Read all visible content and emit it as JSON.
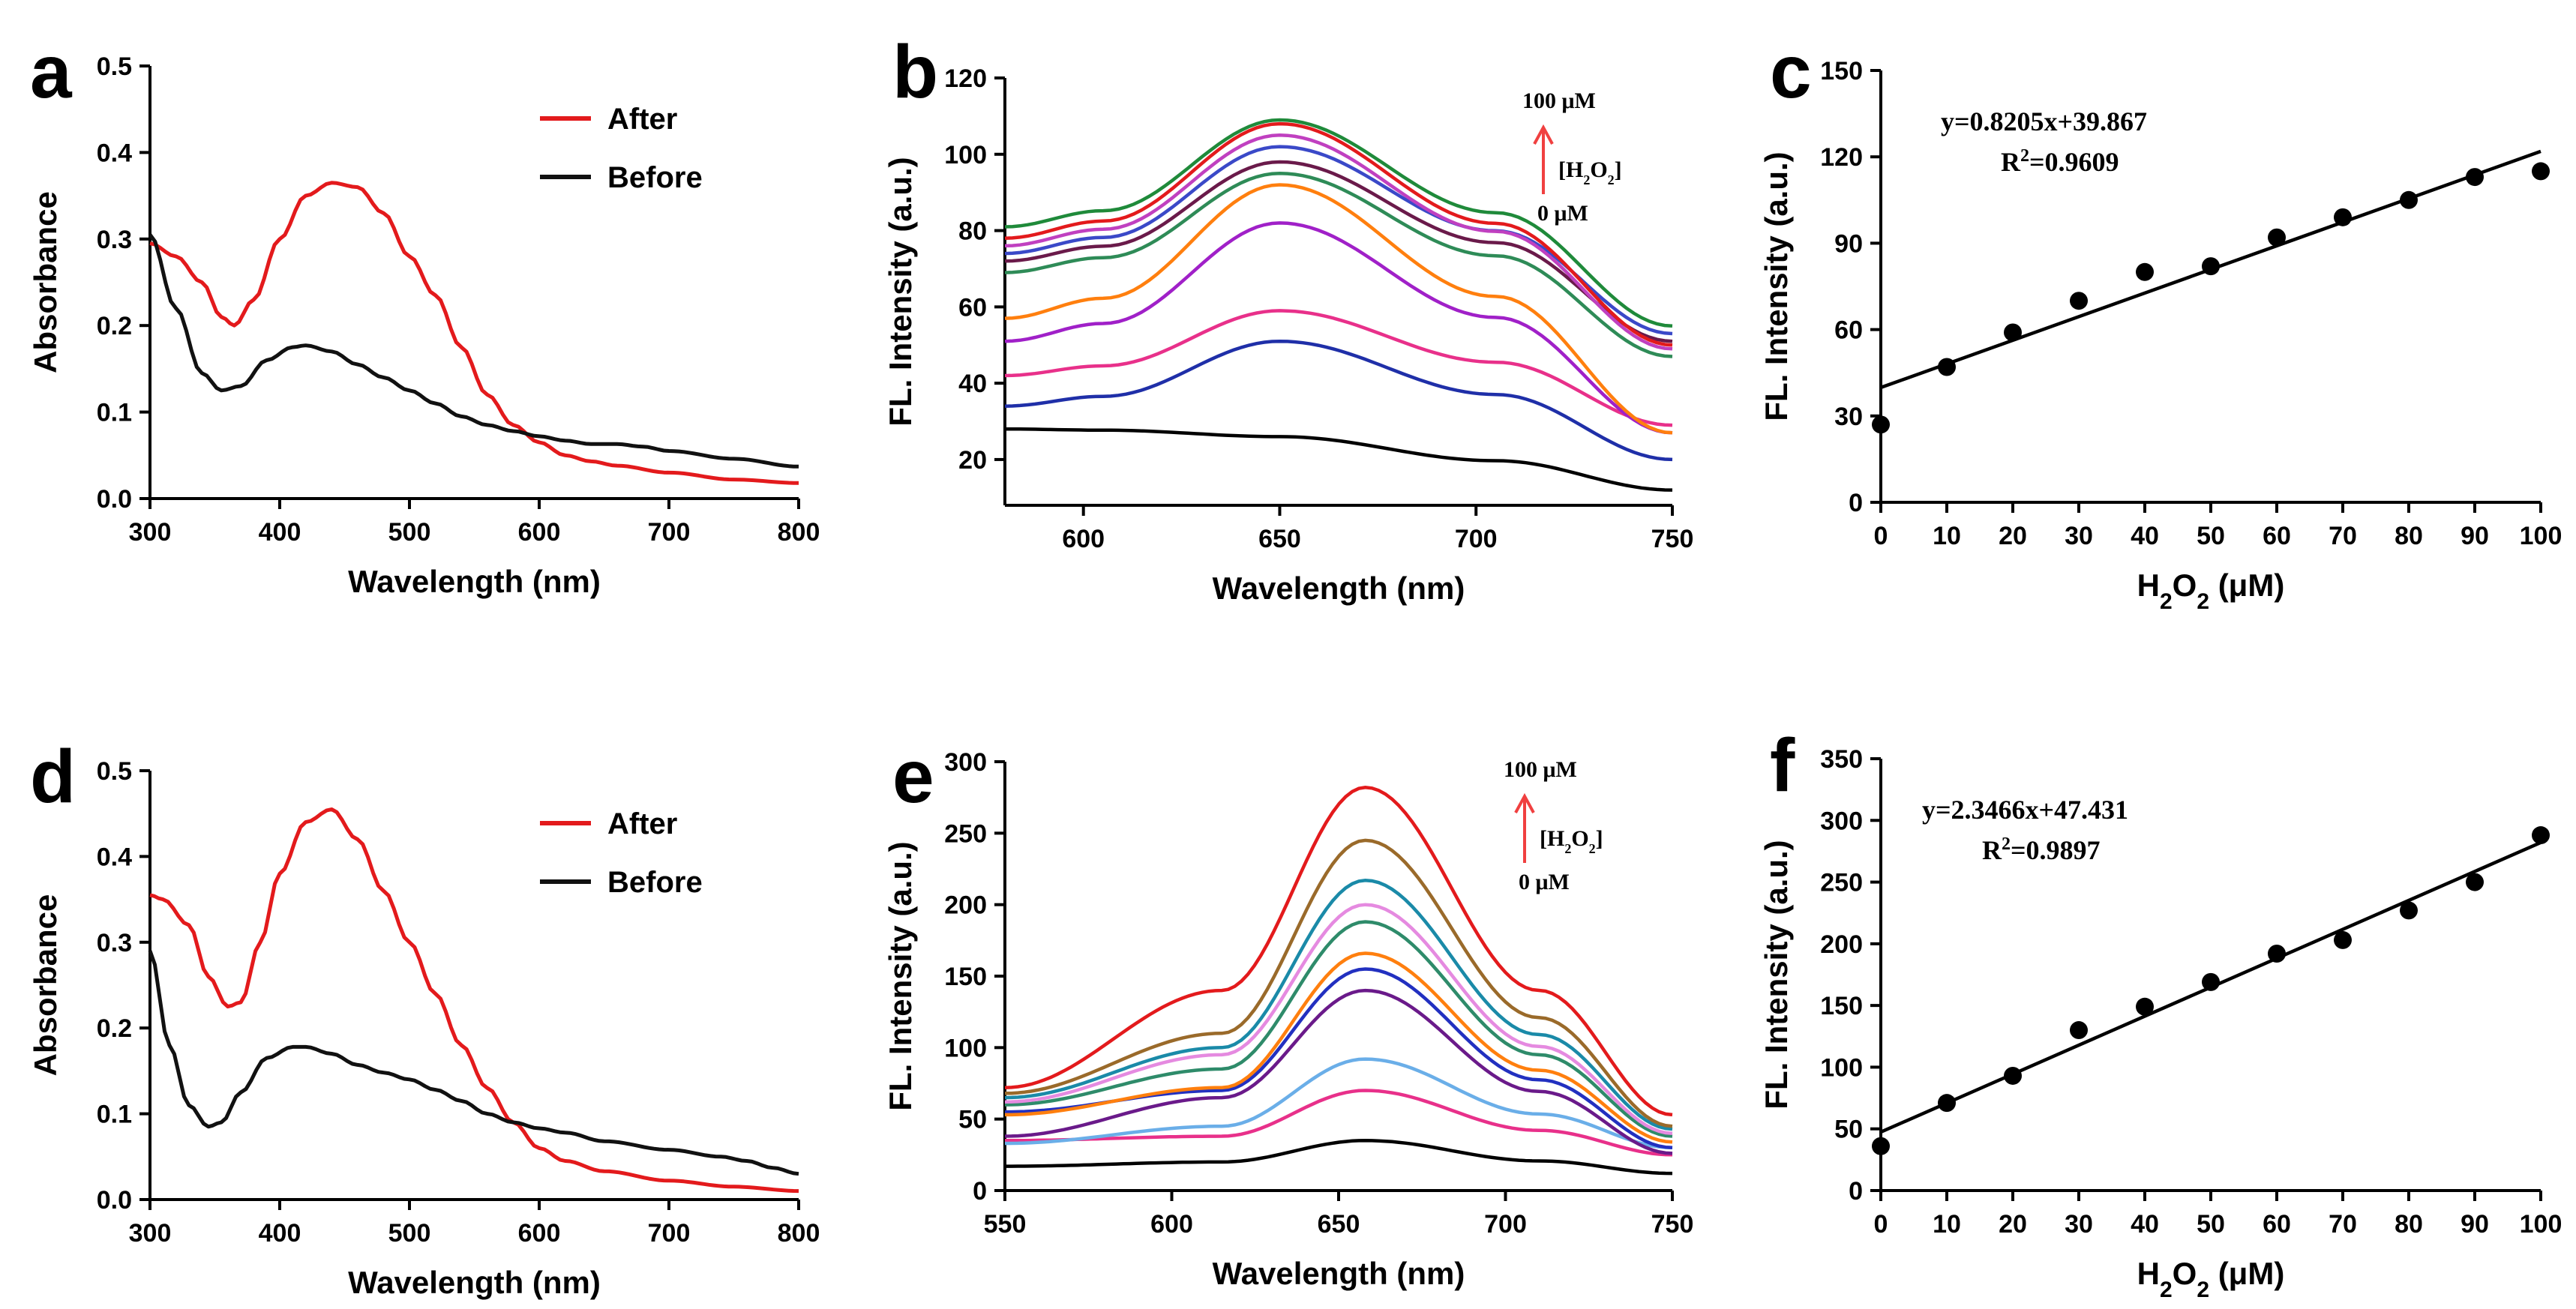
{
  "chart_data": [
    {
      "panel": "a",
      "type": "line",
      "xlabel": "Wavelength (nm)",
      "ylabel": "Absorbance",
      "xlim": [
        300,
        800
      ],
      "ylim": [
        0,
        0.5
      ],
      "xticks": [
        300,
        400,
        500,
        600,
        700,
        800
      ],
      "yticks": [
        0,
        0.1,
        0.2,
        0.3,
        0.4,
        0.5
      ],
      "ytick_labels": [
        "0.0",
        "0.1",
        "0.2",
        "0.3",
        "0.4",
        "0.5"
      ],
      "legend": {
        "placement": "top-right",
        "items": [
          "After",
          "Before"
        ]
      },
      "series": [
        {
          "name": "After",
          "color": "#e31a1c",
          "x": [
            300,
            320,
            340,
            355,
            365,
            380,
            400,
            420,
            440,
            460,
            480,
            500,
            520,
            540,
            560,
            580,
            600,
            620,
            640,
            660,
            700,
            750,
            800
          ],
          "y": [
            0.295,
            0.28,
            0.25,
            0.21,
            0.2,
            0.23,
            0.3,
            0.35,
            0.365,
            0.36,
            0.33,
            0.28,
            0.235,
            0.175,
            0.12,
            0.085,
            0.065,
            0.05,
            0.043,
            0.038,
            0.03,
            0.022,
            0.018
          ]
        },
        {
          "name": "Before",
          "color": "#111111",
          "x": [
            300,
            320,
            340,
            355,
            370,
            390,
            410,
            420,
            440,
            460,
            480,
            500,
            520,
            540,
            560,
            580,
            600,
            620,
            640,
            660,
            680,
            700,
            750,
            800
          ],
          "y": [
            0.305,
            0.22,
            0.145,
            0.125,
            0.13,
            0.16,
            0.175,
            0.177,
            0.17,
            0.155,
            0.14,
            0.125,
            0.11,
            0.095,
            0.085,
            0.078,
            0.072,
            0.067,
            0.063,
            0.063,
            0.06,
            0.055,
            0.046,
            0.037
          ]
        }
      ]
    },
    {
      "panel": "b",
      "type": "line",
      "xlabel": "Wavelength (nm)",
      "ylabel": "FL. Intensity (a.u.)",
      "xlim": [
        580,
        750
      ],
      "ylim": [
        8,
        120
      ],
      "xticks": [
        600,
        650,
        700,
        750
      ],
      "yticks": [
        20,
        40,
        60,
        80,
        100,
        120
      ],
      "annotation": {
        "top": "100 μM",
        "middle": "[H",
        "sub": "2",
        "middle2": "O",
        "end": "]",
        "bottom": "0 μM"
      },
      "series_shape": {
        "x_start": 580,
        "x_peak": 650,
        "x_end": 750
      },
      "series": [
        {
          "color": "#000000",
          "start": 28,
          "peak": 26,
          "end": 12
        },
        {
          "color": "#1f2fa8",
          "start": 34,
          "peak": 51,
          "end": 20
        },
        {
          "color": "#e8308a",
          "start": 42,
          "peak": 59,
          "end": 29
        },
        {
          "color": "#a020c8",
          "start": 51,
          "peak": 82,
          "end": 27
        },
        {
          "color": "#ff7f0e",
          "start": 57,
          "peak": 92,
          "end": 27
        },
        {
          "color": "#2e8b57",
          "start": 69,
          "peak": 95,
          "end": 47
        },
        {
          "color": "#6a1a4a",
          "start": 72,
          "peak": 98,
          "end": 51
        },
        {
          "color": "#3a49c8",
          "start": 74,
          "peak": 102,
          "end": 53
        },
        {
          "color": "#c040c0",
          "start": 76,
          "peak": 105,
          "end": 49
        },
        {
          "color": "#e31a1c",
          "start": 78,
          "peak": 108,
          "end": 50
        },
        {
          "color": "#1f8a3a",
          "start": 81,
          "peak": 109,
          "end": 55
        }
      ]
    },
    {
      "panel": "c",
      "type": "scatter",
      "xlabel_parts": [
        "H",
        "2",
        "O",
        "2",
        " (μM)"
      ],
      "ylabel": "FL. Intensity (a.u.)",
      "xlim": [
        0,
        100
      ],
      "ylim": [
        0,
        150
      ],
      "xticks": [
        0,
        10,
        20,
        30,
        40,
        50,
        60,
        70,
        80,
        90,
        100
      ],
      "yticks": [
        0,
        30,
        60,
        90,
        120,
        150
      ],
      "equation": "y=0.8205x+39.867",
      "r2_prefix": "R",
      "r2_sup": "2",
      "r2_value": "=0.9609",
      "fit": {
        "slope": 0.8205,
        "intercept": 39.867
      },
      "x": [
        0,
        10,
        20,
        30,
        40,
        50,
        60,
        70,
        80,
        90,
        100
      ],
      "y": [
        27,
        47,
        59,
        70,
        80,
        82,
        92,
        99,
        105,
        113,
        115
      ]
    },
    {
      "panel": "d",
      "type": "line",
      "xlabel": "Wavelength (nm)",
      "ylabel": "Absorbance",
      "xlim": [
        300,
        800
      ],
      "ylim": [
        0,
        0.5
      ],
      "xticks": [
        300,
        400,
        500,
        600,
        700,
        800
      ],
      "yticks": [
        0,
        0.1,
        0.2,
        0.3,
        0.4,
        0.5
      ],
      "ytick_labels": [
        "0.0",
        "0.1",
        "0.2",
        "0.3",
        "0.4",
        "0.5"
      ],
      "legend": {
        "placement": "top-right",
        "items": [
          "After",
          "Before"
        ]
      },
      "series": [
        {
          "name": "After",
          "color": "#e31a1c",
          "x": [
            300,
            310,
            330,
            345,
            360,
            370,
            385,
            400,
            420,
            440,
            460,
            480,
            500,
            520,
            540,
            560,
            580,
            600,
            620,
            650,
            700,
            750,
            800
          ],
          "y": [
            0.355,
            0.35,
            0.32,
            0.26,
            0.225,
            0.23,
            0.3,
            0.38,
            0.44,
            0.455,
            0.42,
            0.36,
            0.3,
            0.24,
            0.18,
            0.13,
            0.09,
            0.06,
            0.045,
            0.033,
            0.022,
            0.015,
            0.01
          ]
        },
        {
          "name": "Before",
          "color": "#111111",
          "x": [
            300,
            315,
            330,
            345,
            355,
            370,
            390,
            410,
            420,
            440,
            460,
            480,
            500,
            520,
            540,
            560,
            580,
            600,
            620,
            650,
            700,
            740,
            760,
            780,
            800
          ],
          "y": [
            0.29,
            0.18,
            0.11,
            0.085,
            0.09,
            0.125,
            0.165,
            0.178,
            0.178,
            0.17,
            0.157,
            0.148,
            0.14,
            0.128,
            0.115,
            0.1,
            0.09,
            0.083,
            0.078,
            0.068,
            0.058,
            0.05,
            0.045,
            0.037,
            0.03
          ]
        }
      ]
    },
    {
      "panel": "e",
      "type": "line",
      "xlabel": "Wavelength (nm)",
      "ylabel": "FL. Intensity (a.u.)",
      "xlim": [
        550,
        750
      ],
      "ylim": [
        0,
        300
      ],
      "xticks": [
        550,
        600,
        650,
        700,
        750
      ],
      "yticks": [
        0,
        50,
        100,
        150,
        200,
        250,
        300
      ],
      "annotation": {
        "top": "100 μM",
        "middle": "[H",
        "sub": "2",
        "middle2": "O",
        "end": "]",
        "bottom": "0 μM"
      },
      "series_shape": {
        "x_start": 550,
        "x_shoulder": 615,
        "x_peak": 658,
        "x_end": 750
      },
      "series": [
        {
          "color": "#000000",
          "start": 17,
          "shoulder": 20,
          "peak": 35,
          "end": 12
        },
        {
          "color": "#e8308a",
          "start": 35,
          "shoulder": 38,
          "peak": 70,
          "end": 25
        },
        {
          "color": "#6aaee8",
          "start": 33,
          "shoulder": 45,
          "peak": 92,
          "end": 30
        },
        {
          "color": "#6a1a8a",
          "start": 38,
          "shoulder": 65,
          "peak": 140,
          "end": 26
        },
        {
          "color": "#2230c0",
          "start": 55,
          "shoulder": 70,
          "peak": 155,
          "end": 30
        },
        {
          "color": "#ff7f0e",
          "start": 53,
          "shoulder": 72,
          "peak": 166,
          "end": 34
        },
        {
          "color": "#2e8b6a",
          "start": 60,
          "shoulder": 85,
          "peak": 188,
          "end": 38
        },
        {
          "color": "#e58ae0",
          "start": 62,
          "shoulder": 95,
          "peak": 200,
          "end": 40
        },
        {
          "color": "#1a8aa8",
          "start": 65,
          "shoulder": 100,
          "peak": 217,
          "end": 43
        },
        {
          "color": "#9a6a2a",
          "start": 68,
          "shoulder": 110,
          "peak": 245,
          "end": 45
        },
        {
          "color": "#e31a1c",
          "start": 72,
          "shoulder": 140,
          "peak": 282,
          "end": 53
        }
      ]
    },
    {
      "panel": "f",
      "type": "scatter",
      "xlabel_parts": [
        "H",
        "2",
        "O",
        "2",
        " (μM)"
      ],
      "ylabel": "FL. Intensity (a.u.)",
      "xlim": [
        0,
        100
      ],
      "ylim": [
        0,
        350
      ],
      "xticks": [
        0,
        10,
        20,
        30,
        40,
        50,
        60,
        70,
        80,
        90,
        100
      ],
      "yticks": [
        0,
        50,
        100,
        150,
        200,
        250,
        300,
        350
      ],
      "equation": "y=2.3466x+47.431",
      "r2_prefix": "R",
      "r2_sup": "2",
      "r2_value": "=0.9897",
      "fit": {
        "slope": 2.3466,
        "intercept": 47.431
      },
      "x": [
        0,
        10,
        20,
        30,
        40,
        50,
        60,
        70,
        80,
        90,
        100
      ],
      "y": [
        36,
        71,
        93,
        130,
        149,
        169,
        192,
        203,
        227,
        250,
        288
      ]
    }
  ]
}
